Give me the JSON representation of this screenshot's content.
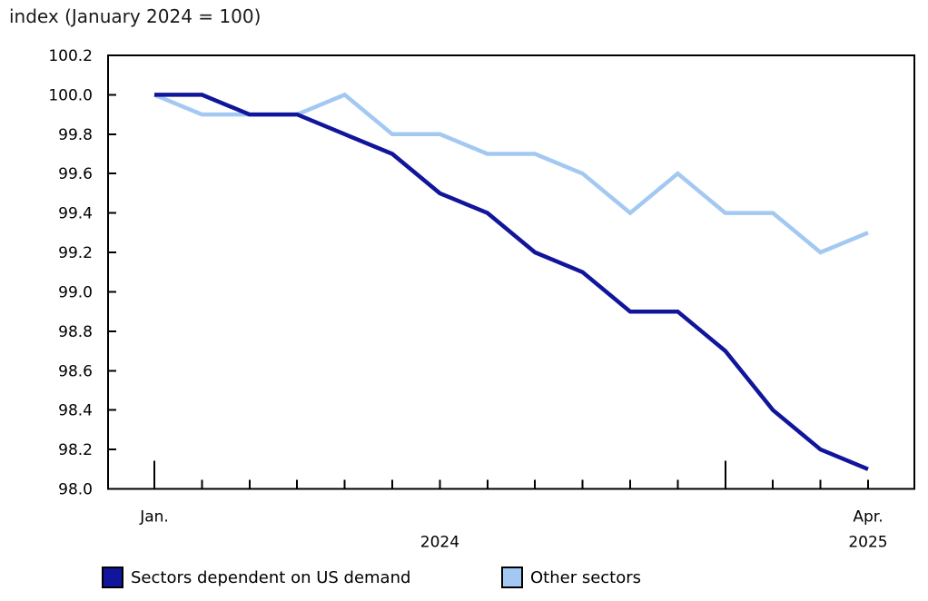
{
  "title": "index (January 2024 = 100)",
  "chart_data": {
    "type": "line",
    "categories": [
      "2024-01",
      "2024-02",
      "2024-03",
      "2024-04",
      "2024-05",
      "2024-06",
      "2024-07",
      "2024-08",
      "2024-09",
      "2024-10",
      "2024-11",
      "2024-12",
      "2025-01",
      "2025-02",
      "2025-03",
      "2025-04"
    ],
    "series": [
      {
        "name": "Other sectors",
        "color": "#A3C9F2",
        "values": [
          100.0,
          99.9,
          99.9,
          99.9,
          100.0,
          99.8,
          99.8,
          99.7,
          99.7,
          99.6,
          99.4,
          99.6,
          99.4,
          99.4,
          99.2,
          99.3
        ]
      },
      {
        "name": "Sectors dependent on US demand",
        "color": "#10159B",
        "values": [
          100.0,
          100.0,
          99.9,
          99.9,
          99.8,
          99.7,
          99.5,
          99.4,
          99.2,
          99.1,
          98.9,
          98.9,
          98.7,
          98.4,
          98.2,
          98.1
        ]
      }
    ],
    "ylim": [
      98.0,
      100.2
    ],
    "y_tick_step": 0.2,
    "x_axis": {
      "first_tick_label": "Jan.",
      "last_tick_label": "Apr.",
      "year_labels": [
        "2024",
        "2025"
      ],
      "long_tick_indices": [
        0,
        12
      ]
    },
    "grid": false,
    "legend_position": "bottom",
    "frame_color": "#000000"
  },
  "legend": {
    "item1": "Sectors dependent on US demand",
    "item2": "Other sectors"
  }
}
